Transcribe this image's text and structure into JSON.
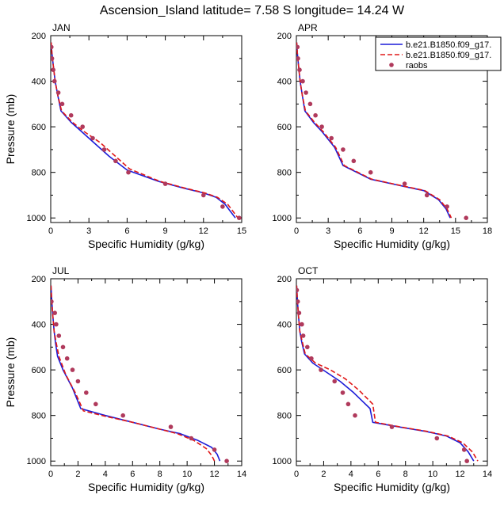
{
  "title": "Ascension_Island  latitude= 7.58 S longitude= 14.24 W",
  "colors": {
    "model1": "#1c1cd8",
    "model2": "#e01818",
    "obs": "#b03a5c"
  },
  "legend": {
    "placement": "top-right of APR panel",
    "entries": [
      {
        "label": "b.e21.B1850.f09_g17.",
        "style": "solid",
        "color": "#1c1cd8"
      },
      {
        "label": "b.e21.B1850.f09_g17.",
        "style": "dashed",
        "color": "#e01818"
      },
      {
        "label": "raobs",
        "style": "marker",
        "color": "#b03a5c"
      }
    ]
  },
  "chart_data": [
    {
      "type": "line",
      "panel": "JAN",
      "xlabel": "Specific Humidity (g/kg)",
      "ylabel": "Pressure (mb)",
      "xlim": [
        0,
        15
      ],
      "xticks": [
        0,
        3,
        6,
        9,
        12,
        15
      ],
      "ylim": [
        200,
        1020
      ],
      "yticks": [
        200,
        400,
        600,
        800,
        1000
      ],
      "y_reversed": true,
      "series": [
        {
          "values": [
            [
              0.03,
              230
            ],
            [
              0.1,
              280
            ],
            [
              0.2,
              330
            ],
            [
              0.35,
              400
            ],
            [
              0.55,
              460
            ],
            [
              0.8,
              530
            ],
            [
              1.6,
              580
            ],
            [
              2.4,
              620
            ],
            [
              3.6,
              680
            ],
            [
              4.6,
              730
            ],
            [
              6,
              790
            ],
            [
              8.5,
              840
            ],
            [
              10.5,
              870
            ],
            [
              12,
              890
            ],
            [
              13,
              910
            ],
            [
              13.7,
              940
            ],
            [
              14.1,
              970
            ],
            [
              14.5,
              1000
            ]
          ]
        },
        {
          "values": [
            [
              0.03,
              230
            ],
            [
              0.1,
              280
            ],
            [
              0.2,
              330
            ],
            [
              0.35,
              400
            ],
            [
              0.55,
              460
            ],
            [
              0.85,
              530
            ],
            [
              1.7,
              580
            ],
            [
              2.6,
              620
            ],
            [
              3.9,
              670
            ],
            [
              4.9,
              720
            ],
            [
              6.2,
              785
            ],
            [
              8.6,
              840
            ],
            [
              10.6,
              870
            ],
            [
              12.1,
              890
            ],
            [
              13.1,
              910
            ],
            [
              13.9,
              940
            ],
            [
              14.3,
              970
            ],
            [
              14.7,
              1000
            ]
          ]
        },
        {
          "values": [
            [
              0.05,
              250
            ],
            [
              0.1,
              300
            ],
            [
              0.2,
              350
            ],
            [
              0.3,
              400
            ],
            [
              0.6,
              450
            ],
            [
              0.9,
              500
            ],
            [
              1.6,
              550
            ],
            [
              2.5,
              600
            ],
            [
              3.3,
              650
            ],
            [
              4.2,
              700
            ],
            [
              5.1,
              750
            ],
            [
              6.1,
              800
            ],
            [
              9,
              850
            ],
            [
              12,
              900
            ],
            [
              13.5,
              950
            ],
            [
              14.8,
              1000
            ]
          ]
        }
      ]
    },
    {
      "type": "line",
      "panel": "APR",
      "xlabel": "Specific Humidity (g/kg)",
      "ylabel": "",
      "xlim": [
        0,
        18
      ],
      "xticks": [
        0,
        3,
        6,
        9,
        12,
        15,
        18
      ],
      "ylim": [
        200,
        1020
      ],
      "yticks": [
        200,
        400,
        600,
        800,
        1000
      ],
      "y_reversed": true,
      "series": [
        {
          "values": [
            [
              0.03,
              230
            ],
            [
              0.1,
              280
            ],
            [
              0.2,
              330
            ],
            [
              0.35,
              400
            ],
            [
              0.55,
              460
            ],
            [
              0.8,
              530
            ],
            [
              1.6,
              580
            ],
            [
              2.4,
              620
            ],
            [
              3.6,
              690
            ],
            [
              4.4,
              770
            ],
            [
              7,
              830
            ],
            [
              10,
              860
            ],
            [
              12,
              880
            ],
            [
              13.4,
              920
            ],
            [
              14.1,
              960
            ],
            [
              14.5,
              1000
            ]
          ]
        },
        {
          "values": [
            [
              0.03,
              230
            ],
            [
              0.1,
              280
            ],
            [
              0.2,
              330
            ],
            [
              0.35,
              400
            ],
            [
              0.55,
              460
            ],
            [
              0.85,
              530
            ],
            [
              1.7,
              580
            ],
            [
              2.5,
              620
            ],
            [
              3.7,
              690
            ],
            [
              4.5,
              770
            ],
            [
              7.1,
              830
            ],
            [
              10.1,
              860
            ],
            [
              12.1,
              880
            ],
            [
              13.5,
              920
            ],
            [
              14.2,
              960
            ],
            [
              14.6,
              1000
            ]
          ]
        },
        {
          "values": [
            [
              0.1,
              250
            ],
            [
              0.15,
              300
            ],
            [
              0.3,
              350
            ],
            [
              0.6,
              400
            ],
            [
              0.9,
              450
            ],
            [
              1.3,
              500
            ],
            [
              1.8,
              550
            ],
            [
              2.4,
              600
            ],
            [
              3.3,
              650
            ],
            [
              4.4,
              700
            ],
            [
              5.4,
              750
            ],
            [
              7,
              800
            ],
            [
              10.2,
              850
            ],
            [
              12.3,
              900
            ],
            [
              14.2,
              950
            ],
            [
              16,
              1000
            ]
          ]
        }
      ]
    },
    {
      "type": "line",
      "panel": "JUL",
      "xlabel": "Specific Humidity (g/kg)",
      "ylabel": "Pressure (mb)",
      "xlim": [
        0,
        14
      ],
      "xticks": [
        0,
        2,
        4,
        6,
        8,
        10,
        12,
        14
      ],
      "ylim": [
        200,
        1020
      ],
      "yticks": [
        200,
        400,
        600,
        800,
        1000
      ],
      "y_reversed": true,
      "series": [
        {
          "values": [
            [
              0.02,
              230
            ],
            [
              0.08,
              300
            ],
            [
              0.15,
              360
            ],
            [
              0.25,
              430
            ],
            [
              0.35,
              480
            ],
            [
              0.5,
              540
            ],
            [
              0.9,
              600
            ],
            [
              1.6,
              680
            ],
            [
              2.2,
              770
            ],
            [
              4,
              800
            ],
            [
              6,
              830
            ],
            [
              8,
              860
            ],
            [
              9.5,
              880
            ],
            [
              10.8,
              910
            ],
            [
              11.8,
              940
            ],
            [
              12.2,
              970
            ],
            [
              12.4,
              1000
            ]
          ]
        },
        {
          "values": [
            [
              0.02,
              230
            ],
            [
              0.08,
              300
            ],
            [
              0.15,
              360
            ],
            [
              0.25,
              430
            ],
            [
              0.4,
              480
            ],
            [
              0.6,
              540
            ],
            [
              1.1,
              620
            ],
            [
              1.8,
              700
            ],
            [
              2.4,
              780
            ],
            [
              4.1,
              805
            ],
            [
              6,
              830
            ],
            [
              8,
              860
            ],
            [
              9.3,
              880
            ],
            [
              10.5,
              910
            ],
            [
              11.4,
              945
            ],
            [
              11.8,
              975
            ],
            [
              12,
              1000
            ]
          ]
        },
        {
          "values": [
            [
              0.05,
              300
            ],
            [
              0.3,
              350
            ],
            [
              0.4,
              400
            ],
            [
              0.6,
              450
            ],
            [
              0.9,
              500
            ],
            [
              1.2,
              550
            ],
            [
              1.6,
              600
            ],
            [
              2,
              650
            ],
            [
              2.6,
              700
            ],
            [
              3.3,
              750
            ],
            [
              5.3,
              800
            ],
            [
              8.8,
              850
            ],
            [
              10.3,
              900
            ],
            [
              12,
              950
            ],
            [
              12.9,
              1000
            ]
          ]
        }
      ]
    },
    {
      "type": "line",
      "panel": "OCT",
      "xlabel": "Specific Humidity (g/kg)",
      "ylabel": "",
      "xlim": [
        0,
        14
      ],
      "xticks": [
        0,
        2,
        4,
        6,
        8,
        10,
        12,
        14
      ],
      "ylim": [
        200,
        1020
      ],
      "yticks": [
        200,
        400,
        600,
        800,
        1000
      ],
      "y_reversed": true,
      "series": [
        {
          "values": [
            [
              0.02,
              230
            ],
            [
              0.08,
              300
            ],
            [
              0.15,
              360
            ],
            [
              0.25,
              430
            ],
            [
              0.4,
              480
            ],
            [
              0.6,
              530
            ],
            [
              1.2,
              570
            ],
            [
              2.2,
              610
            ],
            [
              3.2,
              650
            ],
            [
              4.2,
              700
            ],
            [
              5.4,
              770
            ],
            [
              5.6,
              830
            ],
            [
              7.5,
              850
            ],
            [
              9.5,
              870
            ],
            [
              11,
              890
            ],
            [
              12,
              920
            ],
            [
              12.6,
              960
            ],
            [
              13,
              1000
            ]
          ]
        },
        {
          "values": [
            [
              0.02,
              230
            ],
            [
              0.08,
              300
            ],
            [
              0.15,
              360
            ],
            [
              0.25,
              430
            ],
            [
              0.45,
              480
            ],
            [
              0.65,
              530
            ],
            [
              1.4,
              570
            ],
            [
              2.5,
              600
            ],
            [
              3.6,
              640
            ],
            [
              4.6,
              690
            ],
            [
              5.6,
              750
            ],
            [
              5.8,
              830
            ],
            [
              7.6,
              850
            ],
            [
              9.6,
              870
            ],
            [
              11.1,
              890
            ],
            [
              12.2,
              920
            ],
            [
              12.9,
              960
            ],
            [
              13.3,
              1000
            ]
          ]
        },
        {
          "values": [
            [
              0.03,
              250
            ],
            [
              0.1,
              300
            ],
            [
              0.2,
              350
            ],
            [
              0.4,
              400
            ],
            [
              0.5,
              450
            ],
            [
              0.8,
              500
            ],
            [
              1.1,
              550
            ],
            [
              1.8,
              600
            ],
            [
              2.8,
              650
            ],
            [
              3.4,
              700
            ],
            [
              3.8,
              750
            ],
            [
              4.3,
              800
            ],
            [
              7,
              850
            ],
            [
              10.3,
              900
            ],
            [
              12.3,
              950
            ],
            [
              12.5,
              1000
            ]
          ]
        }
      ]
    }
  ]
}
